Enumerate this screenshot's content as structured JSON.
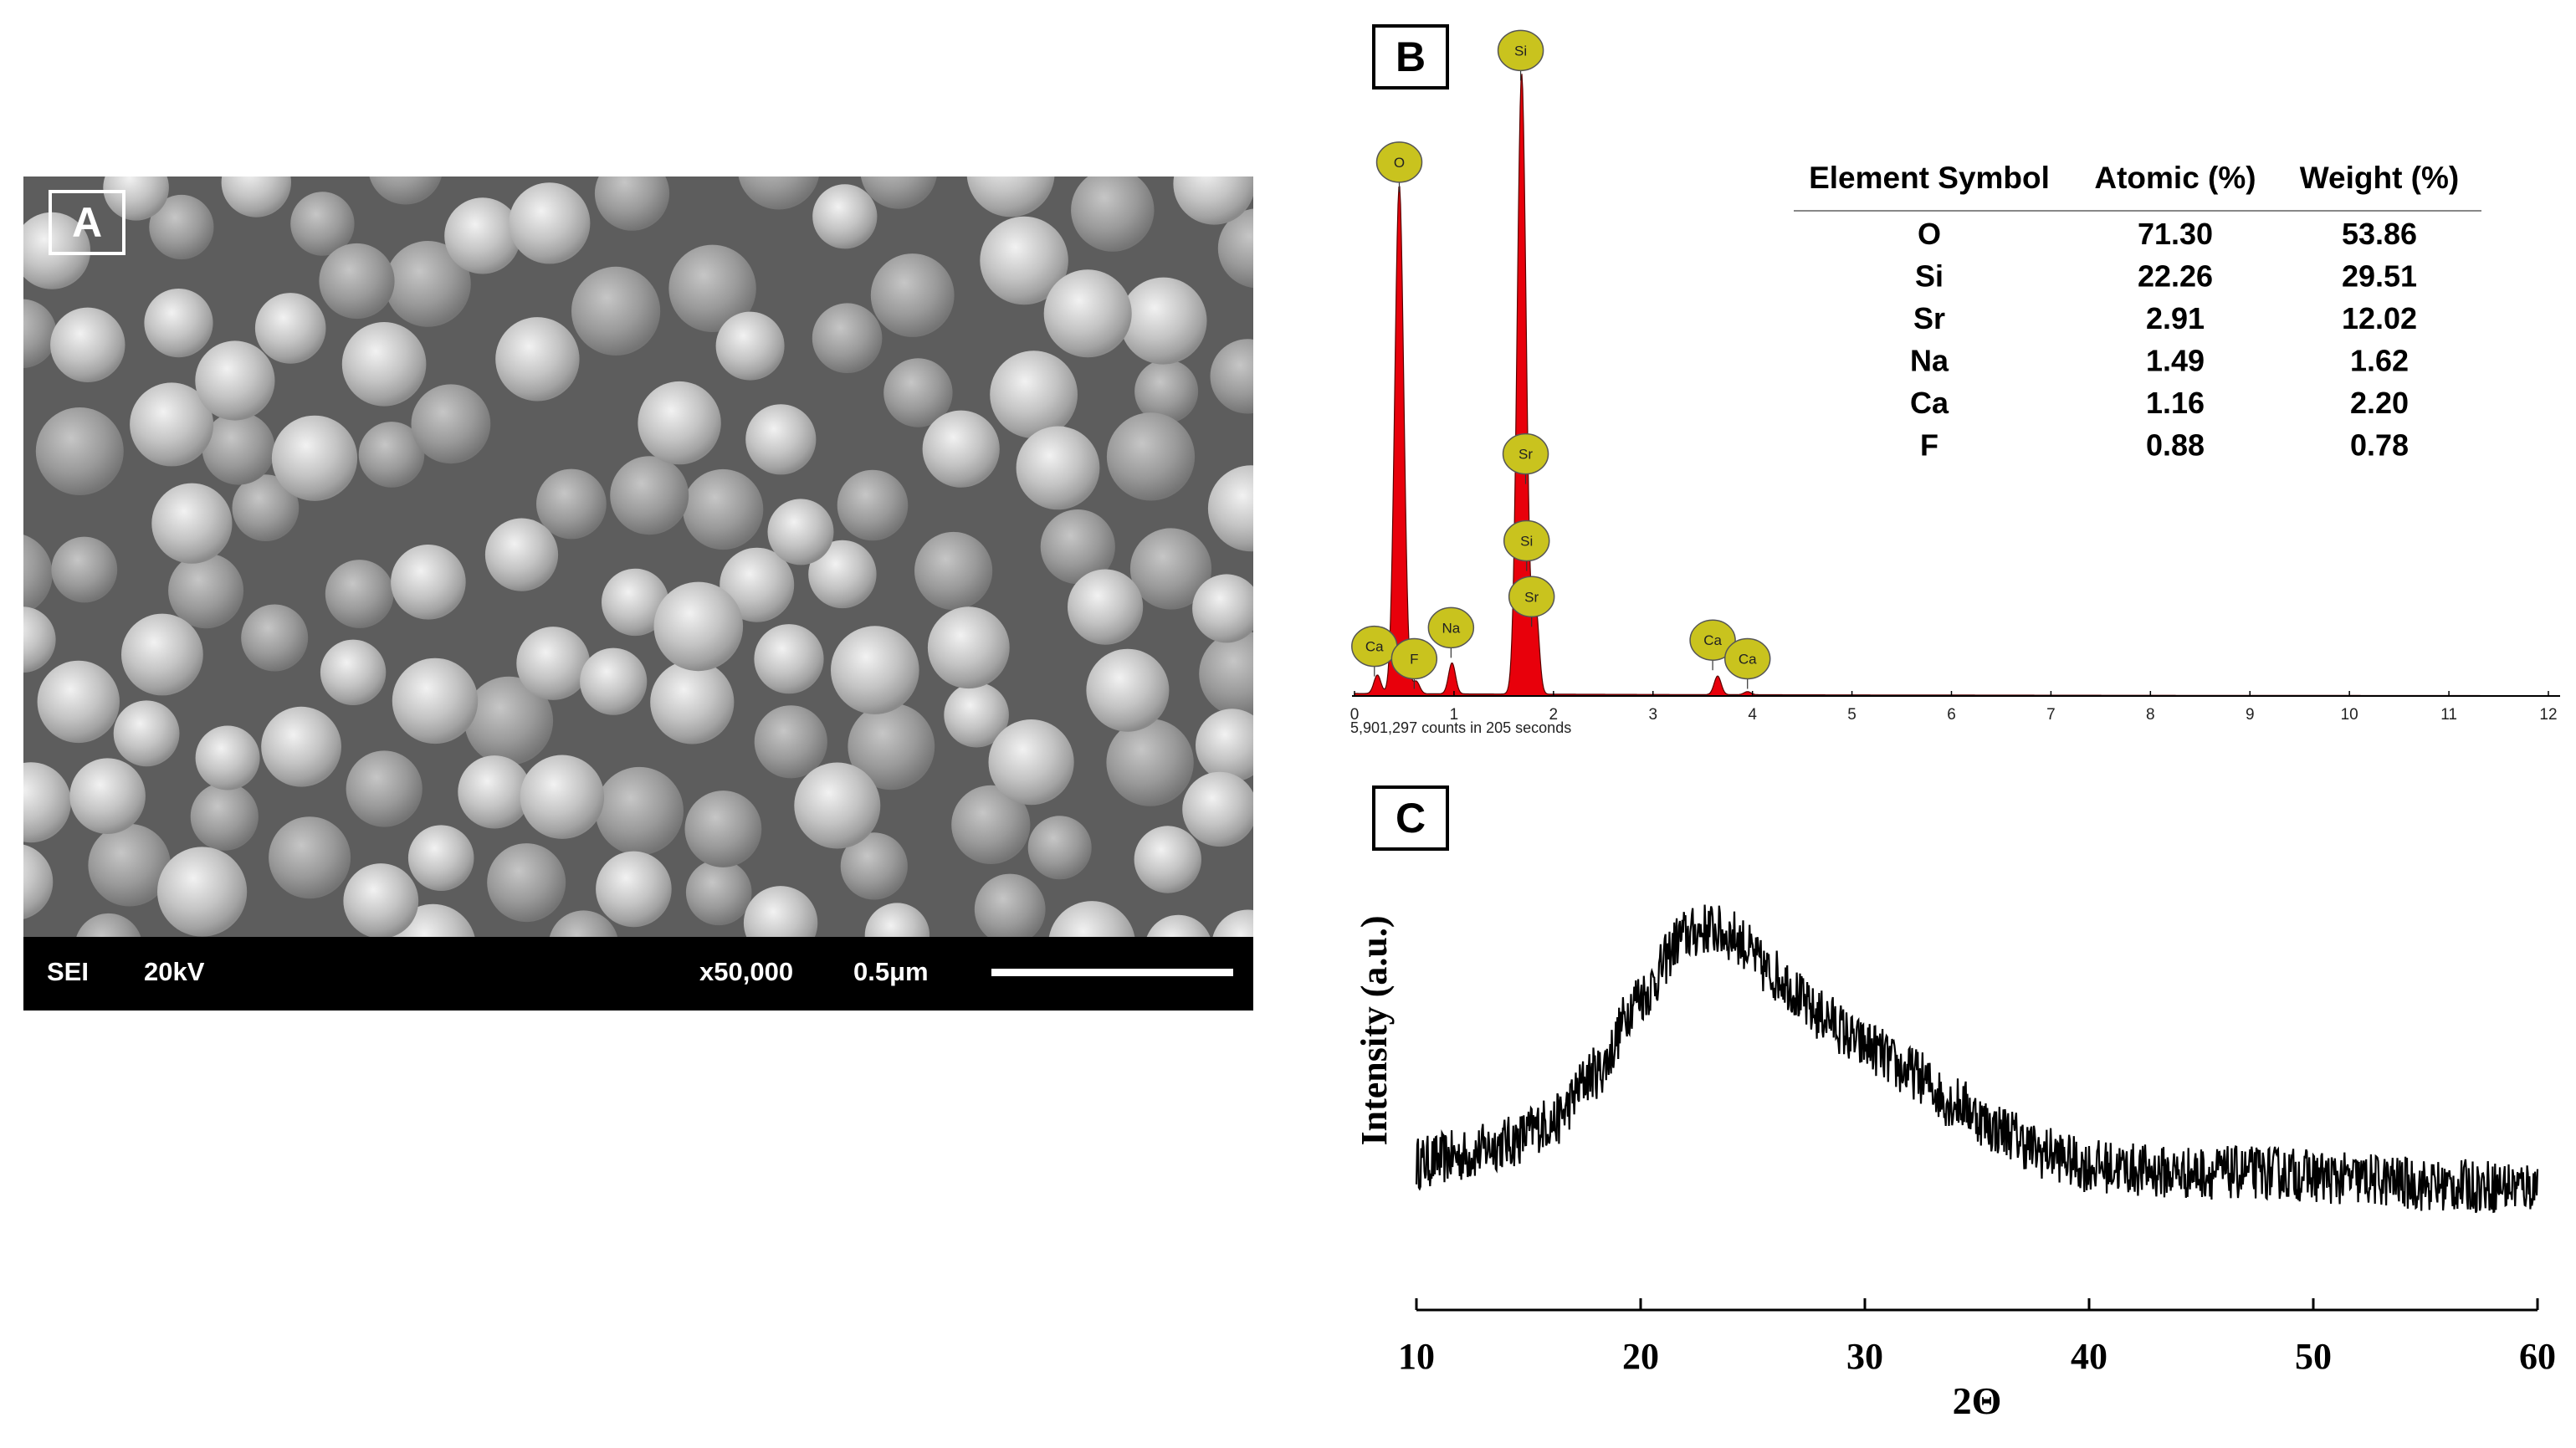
{
  "panels": {
    "a": {
      "label": "A"
    },
    "b": {
      "label": "B"
    },
    "c": {
      "label": "C"
    }
  },
  "sem": {
    "mode": "SEI",
    "voltage": "20kV",
    "magnification": "x50,000",
    "scale_text": "0.5μm"
  },
  "colors": {
    "eds_fill": "#e8000b",
    "marker_fill": "#c9c31e",
    "xrd_line": "#000000"
  },
  "chart_data": [
    {
      "type": "area",
      "panel": "B",
      "x_ticks": [
        0,
        1,
        2,
        3,
        4,
        5,
        6,
        7,
        8,
        9,
        10,
        11,
        12
      ],
      "xlim": [
        0,
        12
      ],
      "footer": "5,901,297 counts in 205 seconds",
      "peaks": [
        {
          "element": "Ca",
          "x": 0.23,
          "height": 0.03
        },
        {
          "element": "O",
          "x": 0.45,
          "height": 0.82
        },
        {
          "element": "F",
          "x": 0.62,
          "height": 0.02
        },
        {
          "element": "Na",
          "x": 0.98,
          "height": 0.05
        },
        {
          "element": "Si",
          "x": 1.68,
          "height": 1.0
        },
        {
          "element": "Sr",
          "x": 1.82,
          "height": 0.14
        },
        {
          "element": "Ca",
          "x": 3.65,
          "height": 0.03
        },
        {
          "element": "Ca",
          "x": 3.95,
          "height": 0.005
        }
      ],
      "markers": [
        {
          "label": "O",
          "x": 0.45,
          "level": 0.86
        },
        {
          "label": "Si",
          "x": 1.67,
          "level": 1.04
        },
        {
          "label": "Sr",
          "x": 1.72,
          "level": 0.39
        },
        {
          "label": "Si",
          "x": 1.73,
          "level": 0.25
        },
        {
          "label": "Sr",
          "x": 1.78,
          "level": 0.16
        },
        {
          "label": "Ca",
          "x": 0.2,
          "level": 0.08
        },
        {
          "label": "F",
          "x": 0.6,
          "level": 0.06
        },
        {
          "label": "Na",
          "x": 0.97,
          "level": 0.11
        },
        {
          "label": "Ca",
          "x": 3.6,
          "level": 0.09
        },
        {
          "label": "Ca",
          "x": 3.95,
          "level": 0.06
        }
      ],
      "table": {
        "headers": [
          "Element Symbol",
          "Atomic (%)",
          "Weight (%)"
        ],
        "rows": [
          [
            "O",
            "71.30",
            "53.86"
          ],
          [
            "Si",
            "22.26",
            "29.51"
          ],
          [
            "Sr",
            "2.91",
            "12.02"
          ],
          [
            "Na",
            "1.49",
            "1.62"
          ],
          [
            "Ca",
            "1.16",
            "2.20"
          ],
          [
            "F",
            "0.88",
            "0.78"
          ]
        ]
      }
    },
    {
      "type": "line",
      "panel": "C",
      "xlabel": "2Θ",
      "ylabel": "Intensity (a.u.)",
      "xlim": [
        10,
        60
      ],
      "x_ticks": [
        10,
        20,
        30,
        40,
        50,
        60
      ],
      "x": [
        10,
        12,
        14,
        16,
        18,
        20,
        22,
        23,
        24,
        26,
        28,
        30,
        32,
        34,
        36,
        38,
        40,
        44,
        48,
        52,
        56,
        60
      ],
      "values": [
        0.1,
        0.12,
        0.16,
        0.22,
        0.37,
        0.6,
        0.78,
        0.8,
        0.78,
        0.66,
        0.54,
        0.45,
        0.37,
        0.28,
        0.2,
        0.13,
        0.09,
        0.07,
        0.07,
        0.05,
        0.03,
        0.03
      ],
      "ylim": [
        0,
        1
      ]
    }
  ]
}
